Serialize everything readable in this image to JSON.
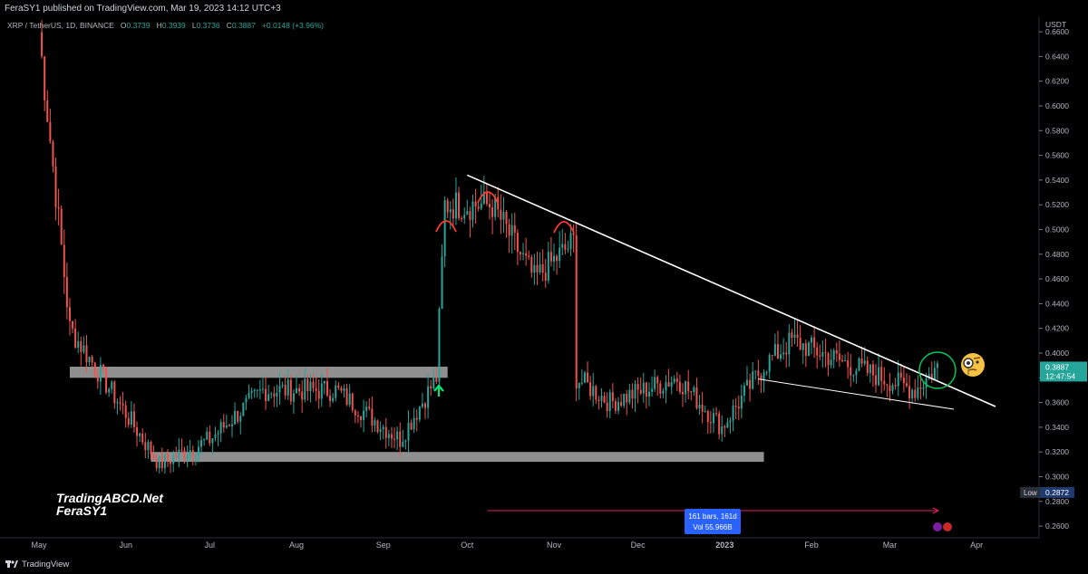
{
  "header": {
    "published": "FeraSY1 published on TradingView.com, Mar 19, 2023 14:12 UTC+3"
  },
  "legend": {
    "symbol": "XRP / TetherUS, 1D, BINANCE",
    "o_label": "O",
    "o": "0.3739",
    "h_label": "H",
    "h": "0.3939",
    "l_label": "L",
    "l": "0.3736",
    "c_label": "C",
    "c": "0.3887",
    "change": "+0.0148 (+3.96%)"
  },
  "watermark": {
    "line1": "TradingABCD.Net",
    "line2": "FeraSY1"
  },
  "footer": {
    "brand": "TradingView"
  },
  "colors": {
    "up": "#26a69a",
    "down": "#ef5350",
    "zone": "#9e9e9e",
    "trendline": "#ffffff",
    "measure": "#e91e63",
    "circle": "#00c853",
    "arrow": "#00e676",
    "top_arc": "#ff3b30",
    "price_tag": "#26a69a",
    "low_tag": "#2a2e39",
    "measure_box": "#2962ff"
  },
  "chart_data": {
    "type": "candlestick",
    "symbol": "XRP / TetherUS",
    "interval": "1D",
    "exchange": "BINANCE",
    "y_unit": "USDT",
    "ylim": [
      0.25,
      0.675
    ],
    "y_ticks": [
      "0.6600",
      "0.6400",
      "0.6200",
      "0.6000",
      "0.5800",
      "0.5600",
      "0.5400",
      "0.5200",
      "0.5000",
      "0.4800",
      "0.4600",
      "0.4400",
      "0.4200",
      "0.4000",
      "0.3800",
      "0.3600",
      "0.3400",
      "0.3200",
      "0.3000",
      "0.2800",
      "0.2600"
    ],
    "x_ticks": [
      "May",
      "Jun",
      "Jul",
      "Aug",
      "Sep",
      "Oct",
      "Nov",
      "Dec",
      "2023",
      "Feb",
      "Mar",
      "Apr"
    ],
    "last_price": "0.3887",
    "countdown": "12:47:54",
    "low_label": "Low",
    "low_value": "0.2872",
    "key_points": [
      {
        "date": "2022-05-01",
        "close": 0.66
      },
      {
        "date": "2022-05-12",
        "close": 0.42
      },
      {
        "date": "2022-06-13",
        "close": 0.31
      },
      {
        "date": "2022-07-01",
        "close": 0.33
      },
      {
        "date": "2022-07-20",
        "close": 0.37
      },
      {
        "date": "2022-08-15",
        "close": 0.37
      },
      {
        "date": "2022-09-07",
        "close": 0.33
      },
      {
        "date": "2022-09-20",
        "close": 0.38
      },
      {
        "date": "2022-09-23",
        "close": 0.52
      },
      {
        "date": "2022-10-10",
        "close": 0.52
      },
      {
        "date": "2022-10-25",
        "close": 0.46
      },
      {
        "date": "2022-11-08",
        "close": 0.49
      },
      {
        "date": "2022-11-09",
        "close": 0.38
      },
      {
        "date": "2022-11-21",
        "close": 0.36
      },
      {
        "date": "2022-12-15",
        "close": 0.38
      },
      {
        "date": "2022-12-31",
        "close": 0.34
      },
      {
        "date": "2023-01-15",
        "close": 0.39
      },
      {
        "date": "2023-01-25",
        "close": 0.41
      },
      {
        "date": "2023-02-15",
        "close": 0.39
      },
      {
        "date": "2023-03-10",
        "close": 0.37
      },
      {
        "date": "2023-03-18",
        "close": 0.3887
      }
    ],
    "support_zones": [
      [
        0.38,
        0.389
      ],
      [
        0.312,
        0.32
      ]
    ],
    "descending_trendline": [
      {
        "date": "2022-10-01",
        "price": 0.544
      },
      {
        "date": "2023-04-01",
        "price": 0.358
      }
    ],
    "lower_trendline": [
      {
        "date": "2023-01-13",
        "price": 0.379
      },
      {
        "date": "2023-03-25",
        "price": 0.356
      }
    ],
    "range_measure": {
      "label": "161 bars, 161d",
      "volume": "Vol 55.966B"
    }
  }
}
